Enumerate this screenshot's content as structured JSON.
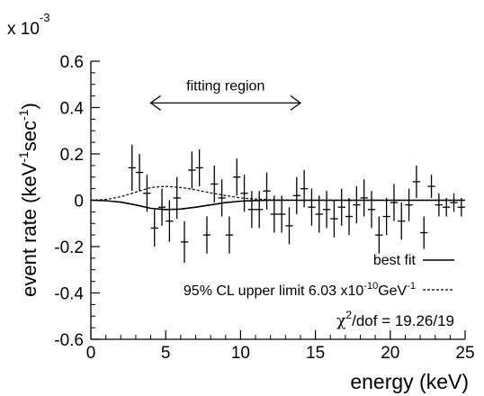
{
  "chart_data": {
    "type": "scatter",
    "xlabel": "energy (keV)",
    "ylabel": "event rate (keV⁻¹sec⁻¹)",
    "multiplier": {
      "base": "x 10",
      "exp": "-3"
    },
    "xlim": [
      0,
      25
    ],
    "ylim": [
      -0.6,
      0.6
    ],
    "xticks": [
      0,
      5,
      10,
      15,
      20,
      25
    ],
    "yticks": [
      -0.6,
      -0.4,
      -0.2,
      0,
      0.2,
      0.4,
      0.6
    ],
    "xtick_labels": [
      "0",
      "5",
      "10",
      "15",
      "20",
      "25"
    ],
    "ytick_labels": [
      "-0.6",
      "-0.4",
      "-0.2",
      "0",
      "0.2",
      "0.4",
      "0.6"
    ],
    "fitting_region": {
      "label": "fitting region",
      "x_range": [
        4,
        14
      ]
    },
    "data_points": {
      "name": "data",
      "x_halfwidth": 0.25,
      "points": [
        {
          "x": 2.75,
          "y": 0.14,
          "err": 0.1
        },
        {
          "x": 3.25,
          "y": 0.12,
          "err": 0.08
        },
        {
          "x": 3.75,
          "y": 0.03,
          "err": 0.08
        },
        {
          "x": 4.25,
          "y": -0.12,
          "err": 0.08
        },
        {
          "x": 4.75,
          "y": -0.03,
          "err": 0.08
        },
        {
          "x": 5.25,
          "y": -0.09,
          "err": 0.09
        },
        {
          "x": 5.75,
          "y": 0.01,
          "err": 0.09
        },
        {
          "x": 6.25,
          "y": -0.18,
          "err": 0.09
        },
        {
          "x": 6.75,
          "y": 0.13,
          "err": 0.08
        },
        {
          "x": 7.25,
          "y": 0.14,
          "err": 0.08
        },
        {
          "x": 7.75,
          "y": -0.15,
          "err": 0.08
        },
        {
          "x": 8.25,
          "y": 0.07,
          "err": 0.08
        },
        {
          "x": 8.75,
          "y": 0.01,
          "err": 0.08
        },
        {
          "x": 9.25,
          "y": -0.15,
          "err": 0.08
        },
        {
          "x": 9.75,
          "y": 0.1,
          "err": 0.08
        },
        {
          "x": 10.25,
          "y": 0.03,
          "err": 0.08
        },
        {
          "x": 10.75,
          "y": -0.04,
          "err": 0.08
        },
        {
          "x": 11.25,
          "y": -0.04,
          "err": 0.08
        },
        {
          "x": 11.75,
          "y": 0.04,
          "err": 0.08
        },
        {
          "x": 12.25,
          "y": -0.06,
          "err": 0.08
        },
        {
          "x": 12.75,
          "y": -0.06,
          "err": 0.08
        },
        {
          "x": 13.25,
          "y": -0.11,
          "err": 0.08
        },
        {
          "x": 13.75,
          "y": 0.02,
          "err": 0.08
        },
        {
          "x": 14.25,
          "y": 0.05,
          "err": 0.08
        },
        {
          "x": 14.75,
          "y": -0.03,
          "err": 0.08
        },
        {
          "x": 15.25,
          "y": -0.06,
          "err": 0.08
        },
        {
          "x": 15.75,
          "y": -0.04,
          "err": 0.08
        },
        {
          "x": 16.25,
          "y": -0.08,
          "err": 0.08
        },
        {
          "x": 16.75,
          "y": -0.03,
          "err": 0.08
        },
        {
          "x": 17.25,
          "y": -0.07,
          "err": 0.08
        },
        {
          "x": 17.75,
          "y": -0.02,
          "err": 0.08
        },
        {
          "x": 18.25,
          "y": 0.01,
          "err": 0.08
        },
        {
          "x": 18.75,
          "y": -0.04,
          "err": 0.08
        },
        {
          "x": 19.25,
          "y": -0.15,
          "err": 0.08
        },
        {
          "x": 19.75,
          "y": -0.07,
          "err": 0.08
        },
        {
          "x": 20.25,
          "y": -0.01,
          "err": 0.08
        },
        {
          "x": 20.75,
          "y": -0.09,
          "err": 0.08
        },
        {
          "x": 21.25,
          "y": -0.02,
          "err": 0.07
        },
        {
          "x": 21.75,
          "y": 0.08,
          "err": 0.07
        },
        {
          "x": 22.25,
          "y": -0.14,
          "err": 0.07
        },
        {
          "x": 22.75,
          "y": 0.06,
          "err": 0.05
        },
        {
          "x": 23.25,
          "y": -0.02,
          "err": 0.05
        },
        {
          "x": 23.75,
          "y": -0.03,
          "err": 0.04
        },
        {
          "x": 24.25,
          "y": -0.01,
          "err": 0.04
        },
        {
          "x": 24.75,
          "y": -0.03,
          "err": 0.04
        }
      ]
    },
    "series": [
      {
        "name": "best fit",
        "style": "solid",
        "x": [
          0,
          1,
          2,
          3,
          4,
          5,
          6,
          7,
          8,
          9,
          10,
          11,
          12,
          13,
          14,
          15,
          16,
          20,
          25
        ],
        "y": [
          0,
          -0.002,
          -0.008,
          -0.02,
          -0.035,
          -0.04,
          -0.038,
          -0.03,
          -0.02,
          -0.01,
          -0.004,
          -0.001,
          0,
          0,
          0,
          0,
          0,
          0,
          0
        ]
      },
      {
        "name": "95% CL upper limit",
        "style": "dashed",
        "x": [
          0,
          1,
          2,
          3,
          4,
          5,
          6,
          7,
          8,
          9,
          10,
          11,
          12,
          13,
          14,
          15,
          16,
          20,
          25
        ],
        "y": [
          0,
          0.003,
          0.015,
          0.035,
          0.055,
          0.06,
          0.055,
          0.045,
          0.032,
          0.02,
          0.01,
          0.005,
          0.002,
          0.001,
          0,
          0,
          0,
          0,
          0
        ]
      }
    ],
    "legend": {
      "placement": "bottom-right",
      "best_fit": "best fit",
      "limit_prefix": "95% CL upper limit 6.03 x10",
      "limit_exp": "-10",
      "limit_unit": "GeV",
      "limit_unit_exp": "-1",
      "chi_symbol": "χ",
      "chi_sup": "2",
      "chi_text": "/dof = 19.26/19"
    }
  }
}
